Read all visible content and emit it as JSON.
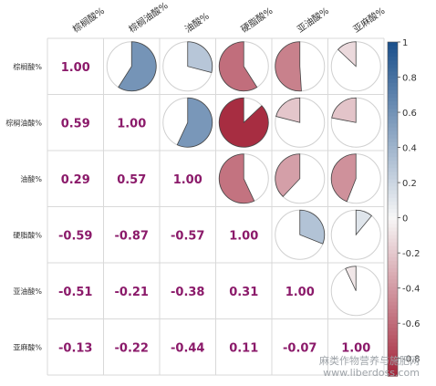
{
  "chart_data": {
    "type": "heatmap",
    "variables": [
      "棕榈酸%",
      "棕榈油酸%",
      "油酸%",
      "硬脂酸%",
      "亚油酸%",
      "亚麻酸%"
    ],
    "matrix": [
      [
        1.0,
        0.59,
        0.29,
        -0.59,
        -0.51,
        -0.13
      ],
      [
        0.59,
        1.0,
        0.57,
        -0.87,
        -0.21,
        -0.22
      ],
      [
        0.29,
        0.57,
        1.0,
        -0.57,
        -0.38,
        -0.44
      ],
      [
        -0.59,
        -0.87,
        -0.57,
        1.0,
        0.31,
        0.11
      ],
      [
        -0.51,
        -0.21,
        -0.38,
        0.31,
        1.0,
        -0.07
      ],
      [
        -0.13,
        -0.22,
        -0.44,
        0.11,
        -0.07,
        1.0
      ]
    ],
    "lower_triangle": "number",
    "upper_triangle": "pie",
    "colorbar": {
      "range": [
        -0.9,
        1.0
      ],
      "ticks": [
        1,
        0.8,
        0.6,
        0.4,
        0.2,
        0,
        -0.2,
        -0.4,
        -0.6,
        -0.8
      ],
      "tick_labels": [
        "1",
        "0.8",
        "0.6",
        "0.4",
        "0.2",
        "0",
        "-0.2",
        "-0.4",
        "-0.6",
        "-0.8"
      ]
    },
    "colors": {
      "positive": "#1a4f8b",
      "neutral": "#f7f7f7",
      "negative": "#9b0f26",
      "number_text": "#8b1a6a"
    }
  },
  "watermark": {
    "line1": "麻类作物营养与施肥网",
    "line2": "www.liberdoss.com"
  }
}
